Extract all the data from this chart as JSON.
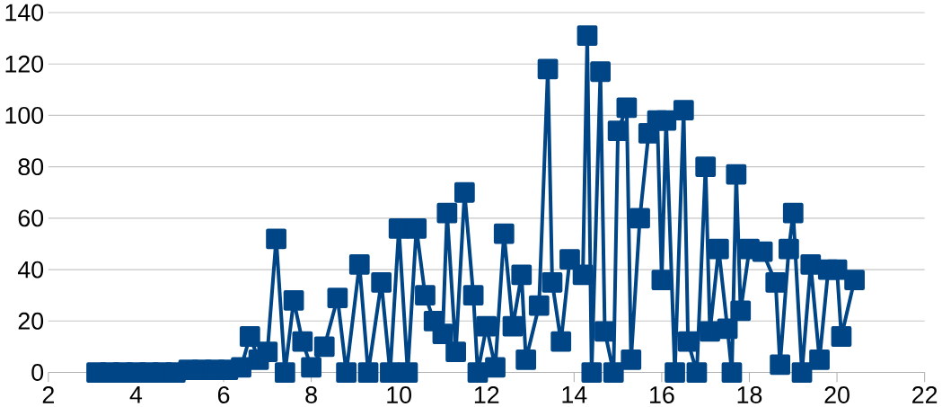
{
  "chart_data": {
    "type": "line",
    "marker": "square",
    "line_style": "solid",
    "grid": "y",
    "xlim": [
      2,
      22
    ],
    "ylim": [
      0,
      140
    ],
    "xticks": [
      2,
      4,
      6,
      8,
      10,
      12,
      14,
      16,
      18,
      20,
      22
    ],
    "yticks": [
      0,
      20,
      40,
      60,
      80,
      100,
      120,
      140
    ],
    "series": [
      {
        "color": "#004586",
        "x": [
          3.1,
          3.4,
          3.7,
          4.0,
          4.3,
          4.6,
          4.9,
          5.2,
          5.5,
          5.8,
          6.1,
          6.4,
          6.6,
          6.8,
          7.0,
          7.2,
          7.4,
          7.6,
          7.8,
          8.0,
          8.3,
          8.6,
          8.8,
          9.1,
          9.3,
          9.6,
          9.8,
          10.0,
          10.2,
          10.4,
          10.6,
          10.8,
          11.0,
          11.1,
          11.3,
          11.5,
          11.7,
          11.8,
          12.0,
          12.2,
          12.4,
          12.6,
          12.8,
          12.9,
          13.2,
          13.4,
          13.5,
          13.7,
          13.9,
          14.2,
          14.3,
          14.4,
          14.6,
          14.7,
          14.9,
          15.0,
          15.2,
          15.3,
          15.5,
          15.7,
          15.9,
          16.0,
          16.1,
          16.3,
          16.5,
          16.6,
          16.8,
          17.0,
          17.1,
          17.3,
          17.5,
          17.6,
          17.7,
          17.8,
          18.0,
          18.3,
          18.6,
          18.7,
          18.9,
          19.0,
          19.2,
          19.4,
          19.6,
          19.8,
          20.0,
          20.1,
          20.4
        ],
        "values": [
          0,
          0,
          0,
          0,
          0,
          0,
          0,
          1,
          1,
          1,
          1,
          2,
          14,
          5,
          8,
          52,
          0,
          28,
          12,
          2,
          10,
          29,
          0,
          42,
          0,
          35,
          0,
          56,
          0,
          56,
          30,
          20,
          15,
          62,
          8,
          70,
          30,
          0,
          18,
          2,
          54,
          18,
          38,
          5,
          26,
          118,
          35,
          12,
          44,
          38,
          131,
          0,
          117,
          16,
          0,
          94,
          103,
          5,
          60,
          93,
          98,
          36,
          98,
          0,
          102,
          12,
          0,
          80,
          16,
          48,
          17,
          0,
          77,
          24,
          48,
          47,
          35,
          3,
          48,
          62,
          0,
          42,
          5,
          40,
          40,
          14,
          36
        ]
      }
    ]
  }
}
